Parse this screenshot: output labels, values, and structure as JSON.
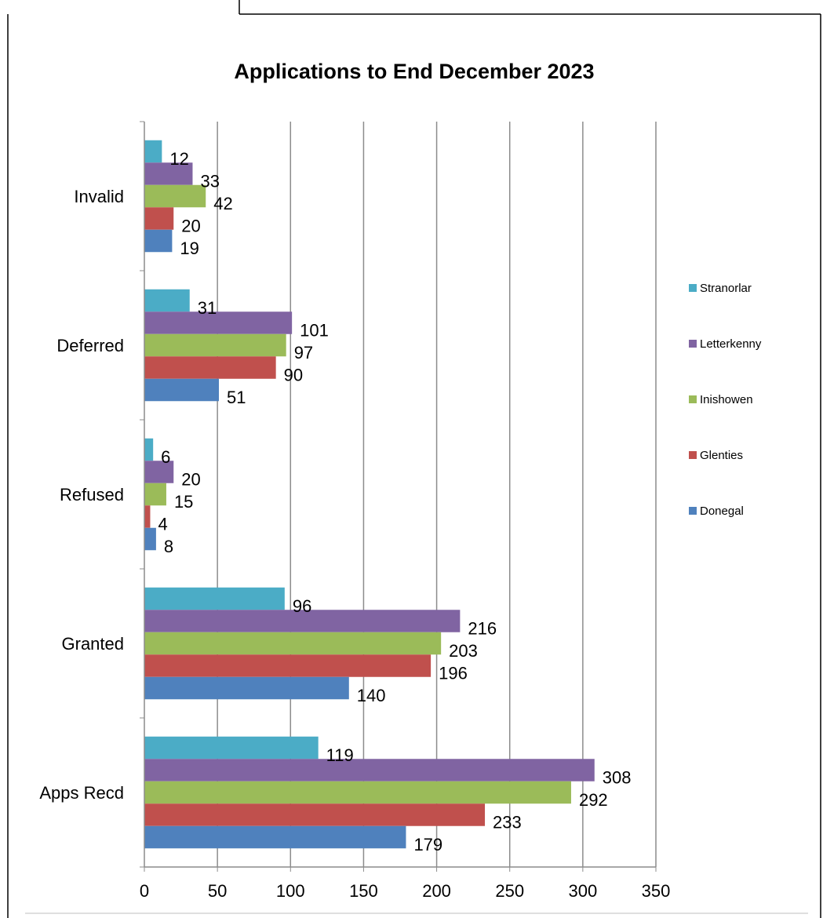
{
  "chart_data": {
    "type": "bar",
    "orientation": "horizontal",
    "title": "Applications to End December 2023",
    "xlabel": "",
    "ylabel": "",
    "categories": [
      "Invalid",
      "Deferred",
      "Refused",
      "Granted",
      "Apps Recd"
    ],
    "series": [
      {
        "name": "Stranorlar",
        "color": "#4bacc6",
        "values": [
          12,
          31,
          6,
          96,
          119
        ]
      },
      {
        "name": "Letterkenny",
        "color": "#8064a2",
        "values": [
          33,
          101,
          20,
          216,
          308
        ]
      },
      {
        "name": "Inishowen",
        "color": "#9bbb59",
        "values": [
          42,
          97,
          15,
          203,
          292
        ]
      },
      {
        "name": "Glenties",
        "color": "#c0504d",
        "values": [
          20,
          90,
          4,
          196,
          233
        ]
      },
      {
        "name": "Donegal",
        "color": "#4f81bd",
        "values": [
          19,
          51,
          8,
          140,
          179
        ]
      }
    ],
    "xlim": [
      0,
      350
    ],
    "xticks": [
      0,
      50,
      100,
      150,
      200,
      250,
      300,
      350
    ],
    "grid": "vertical",
    "legend_position": "right",
    "data_labels": true
  }
}
